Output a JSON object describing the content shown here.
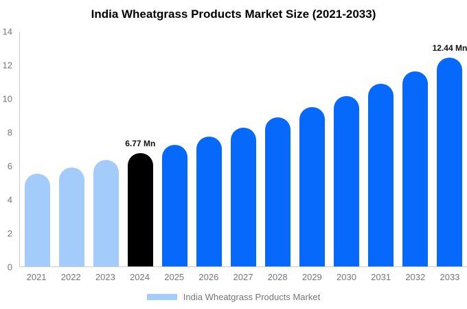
{
  "title": "India Wheatgrass Products Market Size (2021-2033)",
  "legend": {
    "label": "India Wheatgrass Products Market",
    "swatch_color": "#a4ccfa"
  },
  "colors": {
    "historical_bar": "#a4ccfa",
    "base_year_bar": "#000000",
    "forecast_bar": "#0769fb",
    "axis_line": "#cccccc",
    "tick_label": "#757575",
    "annotation_text": "#111111",
    "background": "#ffffff"
  },
  "chart_data": {
    "type": "bar",
    "title": "India Wheatgrass Products Market Size (2021-2033)",
    "unit": "Mn",
    "categories": [
      "2021",
      "2022",
      "2023",
      "2024",
      "2025",
      "2026",
      "2027",
      "2028",
      "2029",
      "2030",
      "2031",
      "2032",
      "2033"
    ],
    "values": [
      5.53,
      5.91,
      6.33,
      6.77,
      7.24,
      7.75,
      8.29,
      8.87,
      9.49,
      10.16,
      10.87,
      11.63,
      12.44
    ],
    "bar_colors": [
      "#a4ccfa",
      "#a4ccfa",
      "#a4ccfa",
      "#000000",
      "#0769fb",
      "#0769fb",
      "#0769fb",
      "#0769fb",
      "#0769fb",
      "#0769fb",
      "#0769fb",
      "#0769fb",
      "#0769fb"
    ],
    "annotations": [
      {
        "category": "2024",
        "text": "6.77 Mn"
      },
      {
        "category": "2033",
        "text": "12.44 Mn"
      }
    ],
    "yticks": [
      0,
      2,
      4,
      6,
      8,
      10,
      12,
      14
    ],
    "ylim": [
      0,
      14
    ],
    "grid": false,
    "legend_position": "bottom",
    "legend_entries": [
      "India Wheatgrass Products Market"
    ]
  }
}
